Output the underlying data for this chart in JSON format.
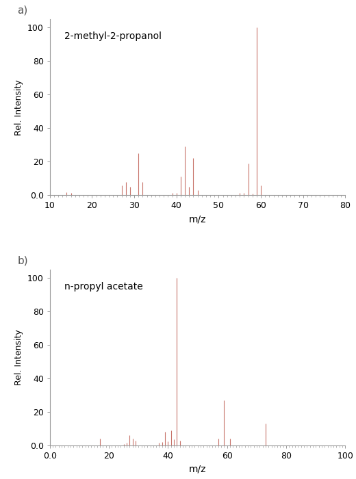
{
  "spectrum_a": {
    "title": "2-methyl-2-propanol",
    "label": "a)",
    "peaks": [
      [
        14,
        2
      ],
      [
        15,
        1.5
      ],
      [
        27,
        6
      ],
      [
        28,
        8
      ],
      [
        29,
        5
      ],
      [
        31,
        25
      ],
      [
        32,
        8
      ],
      [
        39,
        1.5
      ],
      [
        40,
        1.5
      ],
      [
        41,
        11
      ],
      [
        42,
        29
      ],
      [
        43,
        5
      ],
      [
        44,
        22
      ],
      [
        45,
        3
      ],
      [
        55,
        1.5
      ],
      [
        56,
        1.5
      ],
      [
        57,
        19
      ],
      [
        58,
        1
      ],
      [
        59,
        100
      ],
      [
        60,
        6
      ]
    ],
    "xlim": [
      10,
      80
    ],
    "xticks": [
      10,
      20,
      30,
      40,
      50,
      60,
      70,
      80
    ],
    "ylim": [
      0,
      105
    ],
    "yticks": [
      0,
      20,
      40,
      60,
      80,
      100
    ],
    "xlabel": "m/z",
    "ylabel": "Rel. Intensity"
  },
  "spectrum_b": {
    "title": "n-propyl acetate",
    "label": "b)",
    "peaks": [
      [
        17,
        4
      ],
      [
        25,
        1
      ],
      [
        26,
        1.5
      ],
      [
        27,
        6
      ],
      [
        28,
        4
      ],
      [
        29,
        3
      ],
      [
        37,
        1.5
      ],
      [
        38,
        2
      ],
      [
        39,
        8
      ],
      [
        40,
        2.5
      ],
      [
        41,
        9
      ],
      [
        42,
        3.5
      ],
      [
        43,
        100
      ],
      [
        44,
        3
      ],
      [
        57,
        4
      ],
      [
        59,
        27
      ],
      [
        61,
        4
      ],
      [
        73,
        13
      ]
    ],
    "xlim": [
      0,
      100
    ],
    "xticks": [
      0,
      20,
      40,
      60,
      80,
      100
    ],
    "ylim": [
      0,
      105
    ],
    "yticks": [
      0,
      20,
      40,
      60,
      80,
      100
    ],
    "xlabel": "m/z",
    "ylabel": "Rel. Intensity"
  },
  "bar_color": "#c8736a",
  "background_color": "#ffffff",
  "spine_color": "#999999",
  "label_fontsize": 10,
  "title_fontsize": 10,
  "tick_fontsize": 9,
  "ylabel_fontsize": 9,
  "panel_label_fontsize": 11
}
